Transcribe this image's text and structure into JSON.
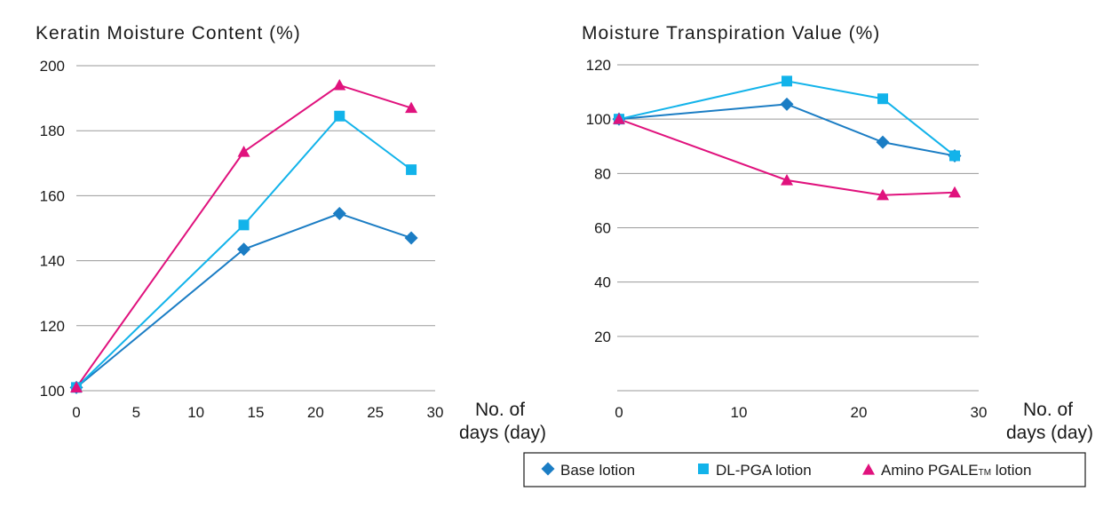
{
  "chart_data": [
    {
      "type": "line",
      "title": "Keratin Moisture Content (%)",
      "xlabel_line1": "No. of",
      "xlabel_line2": "days (day)",
      "xlim": [
        0,
        30
      ],
      "ylim": [
        100,
        200
      ],
      "x_ticks": [
        0,
        5,
        10,
        15,
        20,
        25,
        30
      ],
      "y_ticks": [
        100,
        120,
        140,
        160,
        180,
        200
      ],
      "grid": true,
      "series": [
        {
          "name": "Base lotion",
          "x": [
            0,
            14,
            22,
            28
          ],
          "values": [
            101,
            143.5,
            154.5,
            147
          ]
        },
        {
          "name": "DL-PGA lotion",
          "x": [
            0,
            14,
            22,
            28
          ],
          "values": [
            101,
            151,
            184.5,
            168
          ]
        },
        {
          "name": "Amino PGALE lotion",
          "x": [
            0,
            14,
            22,
            28
          ],
          "values": [
            101,
            173.5,
            194,
            187
          ]
        }
      ]
    },
    {
      "type": "line",
      "title": "Moisture Transpiration Value (%)",
      "xlabel_line1": "No. of",
      "xlabel_line2": "days (day)",
      "xlim": [
        0,
        30
      ],
      "ylim": [
        0,
        120
      ],
      "x_ticks": [
        0,
        10,
        20,
        30
      ],
      "y_ticks": [
        20,
        40,
        60,
        80,
        100,
        120
      ],
      "grid": true,
      "series": [
        {
          "name": "Base lotion",
          "x": [
            0,
            14,
            22,
            28
          ],
          "values": [
            100,
            105.5,
            91.5,
            86.5
          ]
        },
        {
          "name": "DL-PGA lotion",
          "x": [
            0,
            14,
            22,
            28
          ],
          "values": [
            100,
            114,
            107.5,
            86.5
          ]
        },
        {
          "name": "Amino PGALE lotion",
          "x": [
            0,
            14,
            22,
            28
          ],
          "values": [
            100,
            77.5,
            72,
            73
          ]
        }
      ]
    }
  ],
  "legend": {
    "placement": "bottom-right",
    "items": [
      {
        "label": "Base lotion",
        "marker": "diamond",
        "color": "#1B7DC4"
      },
      {
        "label": "DL-PGA lotion",
        "marker": "square",
        "color": "#12B3EA"
      },
      {
        "label_main": "Amino PGALE",
        "label_sup": "TM",
        "label_tail": " lotion",
        "marker": "triangle",
        "color": "#E0127D"
      }
    ]
  },
  "colors": {
    "base": "#1B7DC4",
    "dlpga": "#12B3EA",
    "amino": "#E0127D",
    "grid": "#9a9a9a"
  }
}
